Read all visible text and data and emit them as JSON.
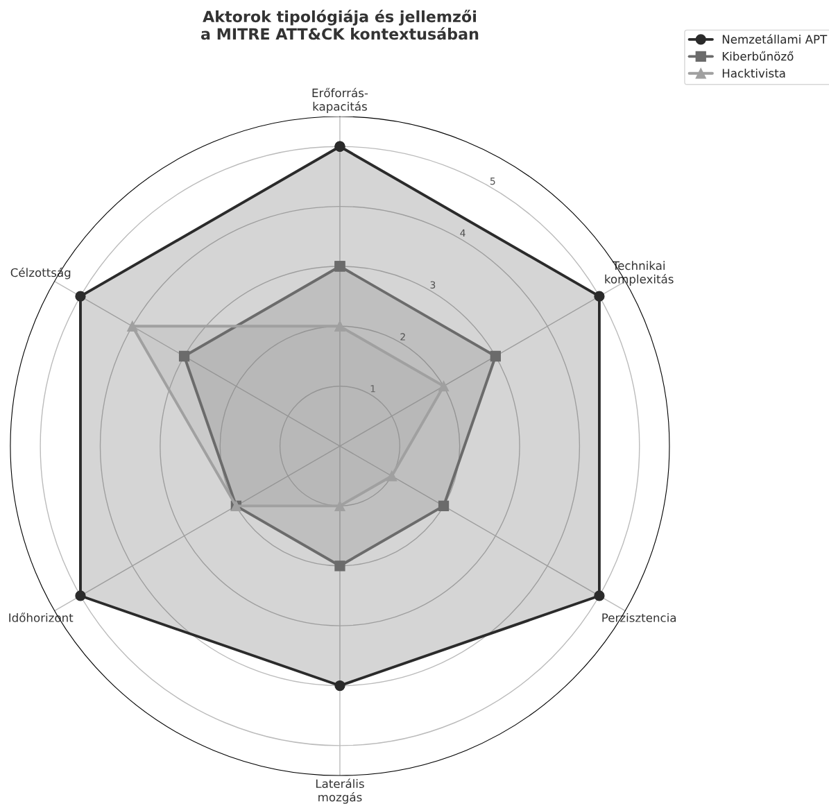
{
  "chart_data": {
    "type": "radar",
    "title": "Aktorok tipológiája és jellemzői\na MITRE ATT&CK kontextusában",
    "categories": [
      "Erőforrás-\nkapacitás",
      "Technikai\nkomplexitás",
      "Perzisztencia",
      "Laterális\nmozgás",
      "Időhorizont",
      "Célzottság"
    ],
    "series": [
      {
        "name": "Nemzetállami APT",
        "color": "#2b2b2b",
        "marker": "circle",
        "values": [
          5,
          5,
          5,
          4,
          5,
          5
        ]
      },
      {
        "name": "Kiberbűnöző",
        "color": "#6b6b6b",
        "marker": "square",
        "values": [
          3,
          3,
          2,
          2,
          2,
          3
        ]
      },
      {
        "name": "Hacktivista",
        "color": "#a0a0a0",
        "marker": "triangle",
        "values": [
          2,
          2,
          1,
          1,
          2,
          4
        ]
      }
    ],
    "ylim": [
      0,
      5.5
    ],
    "yticks": [
      1,
      2,
      3,
      4,
      5
    ],
    "grid": true,
    "legend": "top right"
  }
}
